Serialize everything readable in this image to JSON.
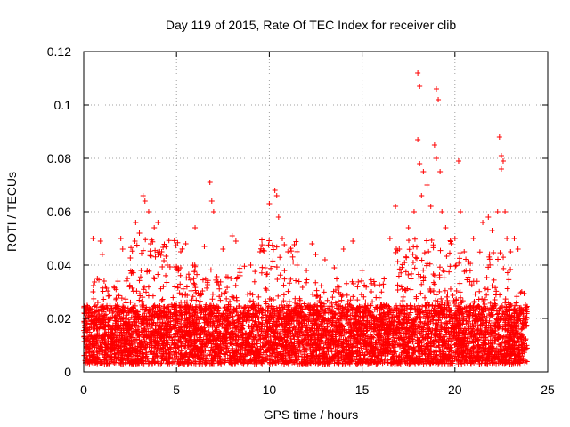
{
  "chart_data": {
    "type": "scatter",
    "title": "Day 119 of 2015, Rate Of TEC Index for receiver clib",
    "xlabel": "GPS time / hours",
    "ylabel": "ROTI / TECUs",
    "xlim": [
      0,
      25
    ],
    "ylim": [
      0,
      0.12
    ],
    "xticks": [
      0,
      5,
      10,
      15,
      20,
      25
    ],
    "xtick_labels": [
      "0",
      "5",
      "10",
      "15",
      "20",
      "25"
    ],
    "yticks": [
      0,
      0.02,
      0.04,
      0.06,
      0.08,
      0.1,
      0.12
    ],
    "ytick_labels": [
      "0",
      "0.02",
      "0.04",
      "0.06",
      "0.08",
      "0.1",
      "0.12"
    ],
    "grid": true,
    "marker": "plus",
    "color": "#ff0000",
    "series": [
      {
        "name": "ROTI",
        "points": [
          [
            0.3,
            0.024
          ],
          [
            0.5,
            0.03
          ],
          [
            0.5,
            0.05
          ],
          [
            0.9,
            0.049
          ],
          [
            1.0,
            0.044
          ],
          [
            1.1,
            0.034
          ],
          [
            2.0,
            0.05
          ],
          [
            2.1,
            0.046
          ],
          [
            2.8,
            0.056
          ],
          [
            3.0,
            0.052
          ],
          [
            3.2,
            0.066
          ],
          [
            3.3,
            0.064
          ],
          [
            3.5,
            0.06
          ],
          [
            3.6,
            0.048
          ],
          [
            3.8,
            0.054
          ],
          [
            4.0,
            0.056
          ],
          [
            4.2,
            0.045
          ],
          [
            4.5,
            0.04
          ],
          [
            5.5,
            0.048
          ],
          [
            6.0,
            0.054
          ],
          [
            6.5,
            0.047
          ],
          [
            6.8,
            0.071
          ],
          [
            6.9,
            0.064
          ],
          [
            7.0,
            0.06
          ],
          [
            7.5,
            0.046
          ],
          [
            8.0,
            0.051
          ],
          [
            8.2,
            0.049
          ],
          [
            9.0,
            0.04
          ],
          [
            9.5,
            0.045
          ],
          [
            10.0,
            0.063
          ],
          [
            10.3,
            0.068
          ],
          [
            10.4,
            0.066
          ],
          [
            10.5,
            0.058
          ],
          [
            10.7,
            0.05
          ],
          [
            11.0,
            0.045
          ],
          [
            11.5,
            0.04
          ],
          [
            12.0,
            0.038
          ],
          [
            12.3,
            0.048
          ],
          [
            12.5,
            0.044
          ],
          [
            13.0,
            0.042
          ],
          [
            13.5,
            0.039
          ],
          [
            14.0,
            0.046
          ],
          [
            14.5,
            0.049
          ],
          [
            15.0,
            0.038
          ],
          [
            15.5,
            0.03
          ],
          [
            16.0,
            0.025
          ],
          [
            16.5,
            0.05
          ],
          [
            16.8,
            0.062
          ],
          [
            17.0,
            0.046
          ],
          [
            17.5,
            0.054
          ],
          [
            17.8,
            0.06
          ],
          [
            18.0,
            0.112
          ],
          [
            18.1,
            0.107
          ],
          [
            18.0,
            0.087
          ],
          [
            18.1,
            0.078
          ],
          [
            18.2,
            0.066
          ],
          [
            18.3,
            0.075
          ],
          [
            18.5,
            0.07
          ],
          [
            18.7,
            0.062
          ],
          [
            18.9,
            0.085
          ],
          [
            19.0,
            0.106
          ],
          [
            19.1,
            0.102
          ],
          [
            19.0,
            0.08
          ],
          [
            19.2,
            0.075
          ],
          [
            19.3,
            0.06
          ],
          [
            19.5,
            0.054
          ],
          [
            19.8,
            0.048
          ],
          [
            20.0,
            0.05
          ],
          [
            20.2,
            0.079
          ],
          [
            20.3,
            0.06
          ],
          [
            20.5,
            0.045
          ],
          [
            21.0,
            0.05
          ],
          [
            21.5,
            0.056
          ],
          [
            21.8,
            0.058
          ],
          [
            22.0,
            0.053
          ],
          [
            22.3,
            0.06
          ],
          [
            22.4,
            0.088
          ],
          [
            22.5,
            0.081
          ],
          [
            22.5,
            0.076
          ],
          [
            22.6,
            0.079
          ],
          [
            22.7,
            0.06
          ],
          [
            22.8,
            0.05
          ],
          [
            23.0,
            0.045
          ],
          [
            23.2,
            0.05
          ],
          [
            23.4,
            0.046
          ],
          [
            23.6,
            0.03
          ],
          [
            23.8,
            0.025
          ]
        ]
      }
    ],
    "dense_band": {
      "description": "continuous cloud of points across the day",
      "x_range": [
        0,
        23.9
      ],
      "base_y_range": [
        0.003,
        0.025
      ],
      "segments": [
        {
          "x": [
            0,
            0.5
          ],
          "ymax": 0.025
        },
        {
          "x": [
            0.5,
            2.5
          ],
          "ymax": 0.035
        },
        {
          "x": [
            2.5,
            5.5
          ],
          "ymax": 0.05
        },
        {
          "x": [
            5.5,
            9.5
          ],
          "ymax": 0.04
        },
        {
          "x": [
            9.5,
            11.5
          ],
          "ymax": 0.05
        },
        {
          "x": [
            11.5,
            16.3
          ],
          "ymax": 0.035
        },
        {
          "x": [
            16.3,
            16.8
          ],
          "ymax": 0.018
        },
        {
          "x": [
            16.8,
            19.8
          ],
          "ymax": 0.05
        },
        {
          "x": [
            19.8,
            23.0
          ],
          "ymax": 0.045
        },
        {
          "x": [
            23.0,
            23.9
          ],
          "ymax": 0.03
        }
      ]
    }
  }
}
